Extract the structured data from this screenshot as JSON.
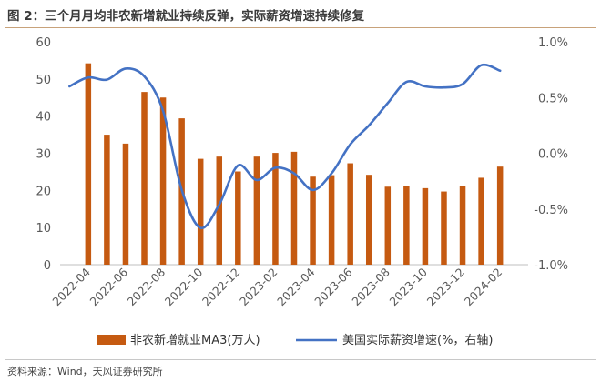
{
  "figure_title": "图 2：三个月月均非农新增就业持续反弹，实际薪资增速持续修复",
  "source": "资料来源：Wind，天风证券研究所",
  "chart_data": {
    "type": "bar+line",
    "colors": {
      "bar": "#c55a11",
      "line": "#4472c4"
    },
    "x_tick_labels": [
      "2022-04",
      "2022-06",
      "2022-08",
      "2022-10",
      "2022-12",
      "2023-02",
      "2023-04",
      "2023-06",
      "2023-08",
      "2023-10",
      "2023-12",
      "2024-02"
    ],
    "y_left": {
      "ticks": [
        "0",
        "10",
        "20",
        "30",
        "40",
        "50",
        "60"
      ],
      "lim": [
        0,
        60
      ]
    },
    "y_right": {
      "ticks": [
        "-1.0%",
        "-0.5%",
        "0.0%",
        "0.5%",
        "1.0%"
      ],
      "lim": [
        -1.0,
        1.0
      ]
    },
    "series": [
      {
        "name": "非农新增就业MA3(万人)",
        "kind": "bar",
        "axis": "left",
        "x": [
          "2022-04",
          "2022-05",
          "2022-06",
          "2022-07",
          "2022-08",
          "2022-09",
          "2022-10",
          "2022-11",
          "2022-12",
          "2023-01",
          "2023-02",
          "2023-03",
          "2023-04",
          "2023-05",
          "2023-06",
          "2023-07",
          "2023-08",
          "2023-09",
          "2023-10",
          "2023-11",
          "2023-12",
          "2024-01",
          "2024-02"
        ],
        "values": [
          54.2,
          35.0,
          32.6,
          46.5,
          45.0,
          39.4,
          28.5,
          29.1,
          25.1,
          29.1,
          30.1,
          30.4,
          23.7,
          24.1,
          27.3,
          24.2,
          21.0,
          21.2,
          20.6,
          19.7,
          21.1,
          23.4,
          26.4
        ]
      },
      {
        "name": "美国实际薪资增速(%，右轴)",
        "kind": "line",
        "axis": "right",
        "x": [
          "2022-03",
          "2022-04",
          "2022-05",
          "2022-06",
          "2022-07",
          "2022-08",
          "2022-09",
          "2022-10",
          "2022-11",
          "2022-12",
          "2023-01",
          "2023-02",
          "2023-03",
          "2023-04",
          "2023-05",
          "2023-06",
          "2023-07",
          "2023-08",
          "2023-09",
          "2023-10",
          "2023-11",
          "2023-12",
          "2024-01",
          "2024-02"
        ],
        "values": [
          0.6,
          0.68,
          0.66,
          0.76,
          0.69,
          0.38,
          -0.33,
          -0.67,
          -0.46,
          -0.11,
          -0.24,
          -0.13,
          -0.18,
          -0.33,
          -0.18,
          0.08,
          0.25,
          0.45,
          0.64,
          0.6,
          0.59,
          0.62,
          0.79,
          0.74
        ]
      }
    ]
  }
}
